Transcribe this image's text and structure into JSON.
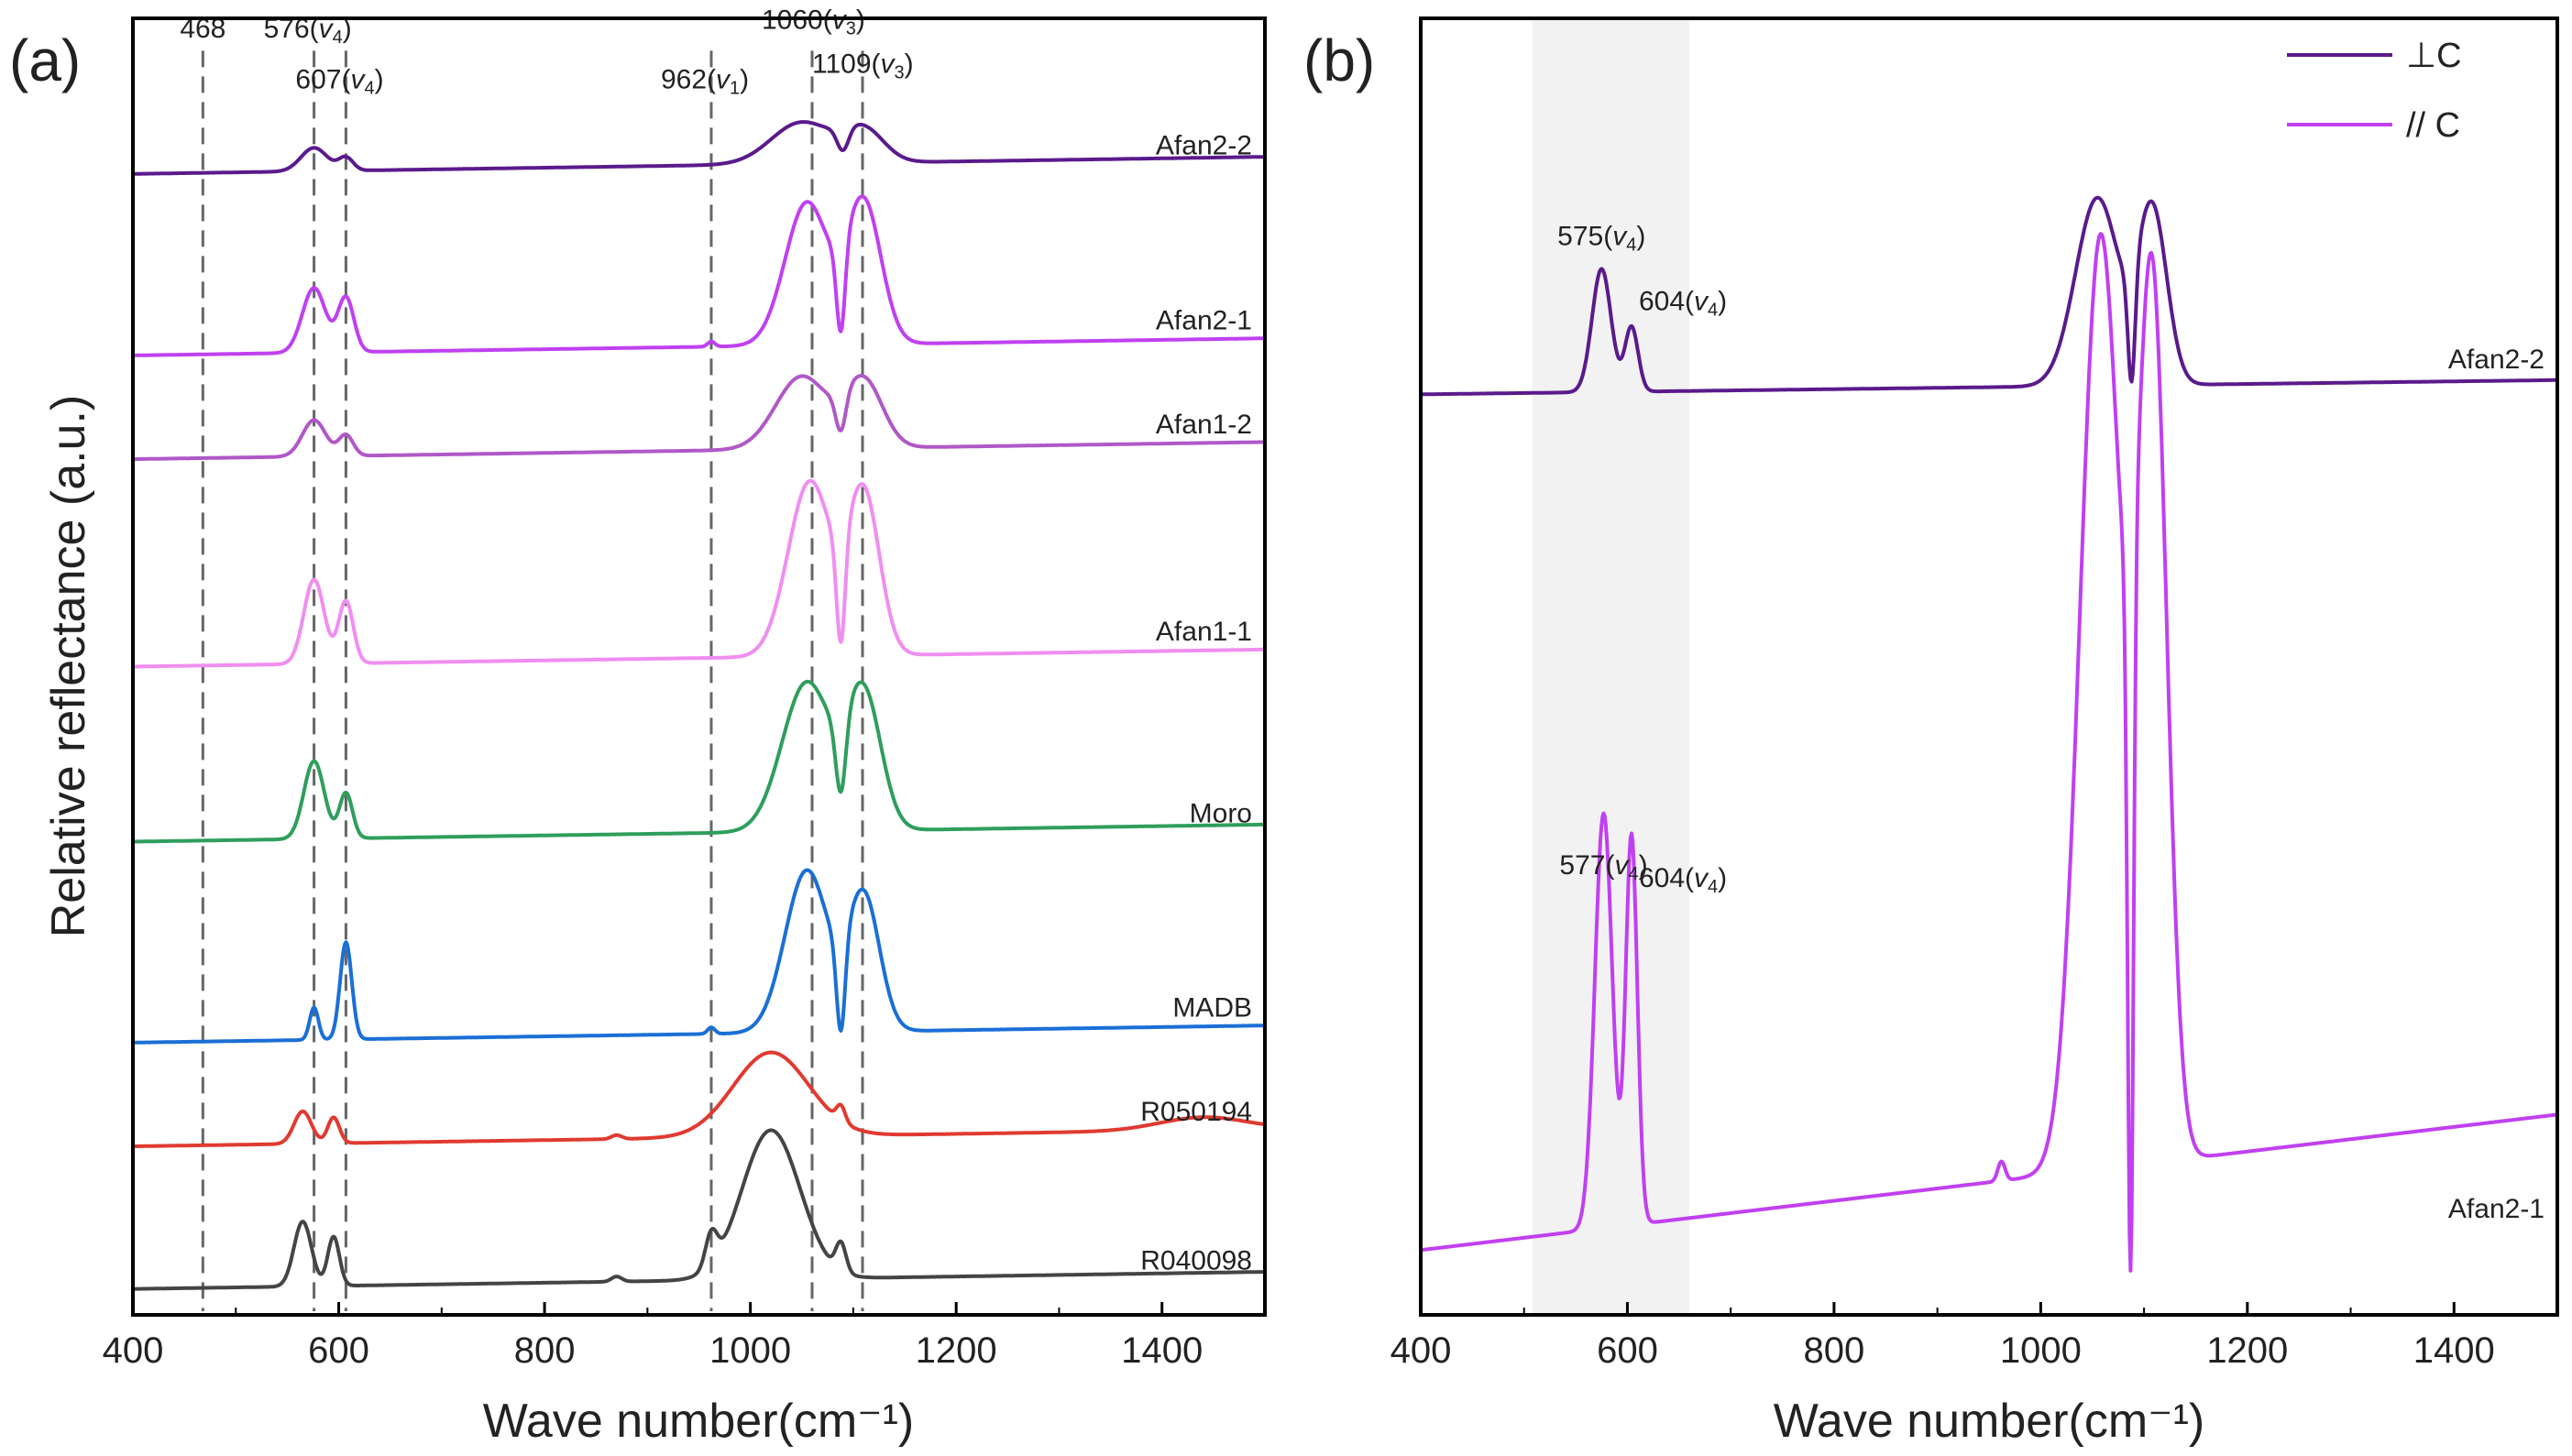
{
  "figure": {
    "panel_a_label": "(a)",
    "panel_b_label": "(b)"
  },
  "chart_data": [
    {
      "type": "line",
      "panel": "(a)",
      "xlabel": "Wave number(cm⁻¹)",
      "ylabel": "Relative reflectance (a.u.)",
      "xlim": [
        400,
        1500
      ],
      "ylim": [
        0,
        100
      ],
      "xticks": [
        400,
        600,
        800,
        1000,
        1200,
        1400
      ],
      "vlines": [
        468,
        576,
        607,
        962,
        1060,
        1109
      ],
      "peak_labels": [
        {
          "x": 468,
          "y": 98.5,
          "num": "468",
          "sub": ""
        },
        {
          "x": 576,
          "y": 98.5,
          "num": "576",
          "sub": "4"
        },
        {
          "x": 607,
          "y": 94.6,
          "num": "607",
          "sub": "4"
        },
        {
          "x": 962,
          "y": 94.6,
          "num": "962",
          "sub": "1"
        },
        {
          "x": 1060,
          "y": 99.2,
          "num": "1060",
          "sub": "3"
        },
        {
          "x": 1109,
          "y": 95.8,
          "num": "1109",
          "sub": "3"
        }
      ],
      "series": [
        {
          "name": "Afan2-2",
          "color": "#5a1a8c",
          "offset": 88.0,
          "label_y": 89.5,
          "peaks": [
            [
              576,
              1.8,
              18
            ],
            [
              607,
              1.0,
              10
            ],
            [
              1050,
              3.2,
              42
            ],
            [
              1110,
              2.5,
              28
            ],
            [
              1090,
              -1.8,
              8
            ]
          ]
        },
        {
          "name": "Afan2-1",
          "color": "#c040f0",
          "offset": 74.0,
          "label_y": 76.0,
          "peaks": [
            [
              576,
              5.0,
              16
            ],
            [
              607,
              4.2,
              11
            ],
            [
              1055,
              11.0,
              30
            ],
            [
              1110,
              11.0,
              24
            ],
            [
              1088,
              -7.0,
              6
            ],
            [
              962,
              0.4,
              5
            ]
          ]
        },
        {
          "name": "Afan1-2",
          "color": "#b058c8",
          "offset": 66.0,
          "label_y": 68.0,
          "peaks": [
            [
              576,
              2.8,
              16
            ],
            [
              607,
              1.6,
              10
            ],
            [
              1050,
              5.6,
              36
            ],
            [
              1110,
              5.2,
              26
            ],
            [
              1088,
              -3.0,
              7
            ]
          ]
        },
        {
          "name": "Afan1-1",
          "color": "#f08ef0",
          "offset": 50.0,
          "label_y": 52.0,
          "peaks": [
            [
              576,
              6.5,
              14
            ],
            [
              607,
              4.8,
              10
            ],
            [
              1058,
              13.5,
              30
            ],
            [
              1110,
              12.5,
              22
            ],
            [
              1088,
              -8.5,
              6
            ]
          ]
        },
        {
          "name": "Moro",
          "color": "#2e9e5c",
          "offset": 36.5,
          "label_y": 38.0,
          "peaks": [
            [
              576,
              6.0,
              14
            ],
            [
              607,
              3.5,
              9
            ],
            [
              1055,
              11.5,
              34
            ],
            [
              1110,
              10.5,
              24
            ],
            [
              1088,
              -6.0,
              7
            ]
          ]
        },
        {
          "name": "MADB",
          "color": "#1a6fd6",
          "offset": 21.0,
          "label_y": 23.0,
          "peaks": [
            [
              576,
              2.5,
              6
            ],
            [
              607,
              7.5,
              8
            ],
            [
              1055,
              12.5,
              30
            ],
            [
              1110,
              10.5,
              22
            ],
            [
              1088,
              -7.5,
              6
            ],
            [
              962,
              0.5,
              5
            ]
          ]
        },
        {
          "name": "R050194",
          "color": "#e03a30",
          "offset": 13.0,
          "label_y": 15.0,
          "peaks": [
            [
              565,
              2.5,
              12
            ],
            [
              595,
              2.0,
              8
            ],
            [
              1020,
              6.5,
              52
            ],
            [
              1088,
              1.2,
              6
            ],
            [
              870,
              0.3,
              7
            ],
            [
              1440,
              1.0,
              60
            ]
          ]
        },
        {
          "name": "R040098",
          "color": "#444444",
          "offset": 2.0,
          "label_y": 3.5,
          "peaks": [
            [
              565,
              5.0,
              12
            ],
            [
              595,
              3.8,
              8
            ],
            [
              1020,
              11.5,
              40
            ],
            [
              962,
              2.5,
              8
            ],
            [
              1088,
              2.2,
              7
            ],
            [
              870,
              0.4,
              7
            ]
          ]
        }
      ]
    },
    {
      "type": "line",
      "panel": "(b)",
      "xlabel": "Wave number(cm⁻¹)",
      "ylabel": "",
      "xlim": [
        400,
        1500
      ],
      "ylim": [
        0,
        100
      ],
      "xticks": [
        400,
        600,
        800,
        1000,
        1200,
        1400
      ],
      "shaded_region": [
        508,
        660
      ],
      "legend": {
        "position": "top-right",
        "entries": [
          {
            "label": "⊥C",
            "color": "#5a1a8c"
          },
          {
            "label": "// C",
            "color": "#c040f0"
          }
        ]
      },
      "peak_labels": [
        {
          "x": 575,
          "y": 82.5,
          "num": "575",
          "sub": "4",
          "anchor": "middle"
        },
        {
          "x": 604,
          "y": 77.5,
          "num": "604",
          "sub": "4",
          "anchor": "start"
        },
        {
          "x": 577,
          "y": 34.0,
          "num": "577",
          "sub": "4",
          "anchor": "middle"
        },
        {
          "x": 604,
          "y": 33.0,
          "num": "604",
          "sub": "4",
          "anchor": "start"
        }
      ],
      "series": [
        {
          "name": "Afan2-2",
          "color": "#5a1a8c",
          "offset": 71.0,
          "slope": 0.001,
          "label_y": 73.0,
          "peaks": [
            [
              575,
              9.5,
              13
            ],
            [
              604,
              5.0,
              9
            ],
            [
              1055,
              14.5,
              30
            ],
            [
              1108,
              13.5,
              20
            ],
            [
              1088,
              -9.0,
              5
            ]
          ]
        },
        {
          "name": "Afan2-1",
          "color": "#c040f0",
          "offset": 5.0,
          "slope": 0.0095,
          "label_y": 7.5,
          "peaks": [
            [
              577,
              32.0,
              12
            ],
            [
              604,
              30.0,
              8
            ],
            [
              1058,
              72.0,
              28
            ],
            [
              1108,
              67.0,
              20
            ],
            [
              1087,
              -55.0,
              4
            ],
            [
              962,
              1.5,
              5
            ]
          ]
        }
      ]
    }
  ]
}
